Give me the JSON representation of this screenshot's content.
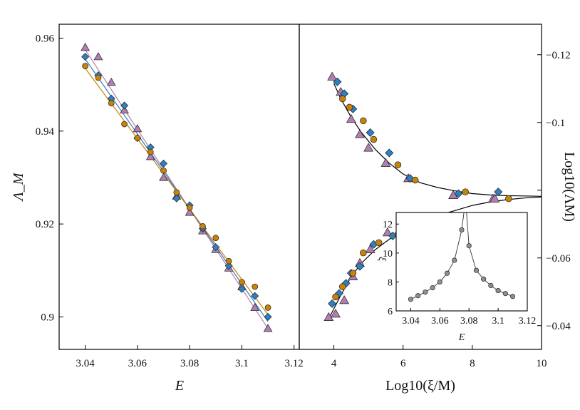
{
  "colors": {
    "triangle": "#b07fb0",
    "diamond": "#2f80c0",
    "circle": "#c8820a",
    "inset_marker": "#909090",
    "fit_curve": "#000000"
  },
  "chart_data": [
    {
      "type": "scatter",
      "panel": "left",
      "xlabel": "E",
      "ylabel": "Λ_M",
      "xlim": [
        3.03,
        3.122
      ],
      "ylim": [
        0.893,
        0.963
      ],
      "x_ticks": [
        3.04,
        3.06,
        3.08,
        3.1,
        3.12
      ],
      "x_tick_labels": [
        "3.04",
        "3.06",
        "3.08",
        "3.1",
        "3.12"
      ],
      "y_ticks": [
        0.9,
        0.92,
        0.94,
        0.96
      ],
      "y_tick_labels": [
        "0.9",
        "0.92",
        "0.94",
        "0.96"
      ],
      "series": [
        {
          "marker": "triangle",
          "x": [
            3.04,
            3.045,
            3.05,
            3.055,
            3.06,
            3.065,
            3.07,
            3.075,
            3.08,
            3.085,
            3.09,
            3.095,
            3.1,
            3.105,
            3.11
          ],
          "y": [
            0.958,
            0.956,
            0.9505,
            0.9445,
            0.9405,
            0.9345,
            0.93,
            0.926,
            0.9225,
            0.9185,
            0.9145,
            0.9105,
            0.9065,
            0.902,
            0.8975
          ],
          "fit": [
            [
              3.04,
              0.9575
            ],
            [
              3.11,
              0.8975
            ]
          ]
        },
        {
          "marker": "diamond",
          "x": [
            3.04,
            3.045,
            3.05,
            3.055,
            3.06,
            3.065,
            3.07,
            3.075,
            3.08,
            3.085,
            3.09,
            3.095,
            3.1,
            3.105,
            3.11
          ],
          "y": [
            0.956,
            0.952,
            0.947,
            0.9455,
            0.9385,
            0.9365,
            0.933,
            0.9255,
            0.924,
            0.919,
            0.915,
            0.911,
            0.906,
            0.9045,
            0.9
          ],
          "fit": [
            [
              3.04,
              0.9555
            ],
            [
              3.11,
              0.899
            ]
          ]
        },
        {
          "marker": "circle",
          "x": [
            3.04,
            3.045,
            3.05,
            3.055,
            3.06,
            3.065,
            3.07,
            3.075,
            3.08,
            3.085,
            3.09,
            3.095,
            3.1,
            3.105,
            3.11
          ],
          "y": [
            0.954,
            0.9515,
            0.946,
            0.9415,
            0.9385,
            0.9355,
            0.9315,
            0.9268,
            0.9235,
            0.9195,
            0.917,
            0.912,
            0.9075,
            0.9065,
            0.902
          ],
          "fit": [
            [
              3.04,
              0.9535
            ],
            [
              3.11,
              0.9005
            ]
          ]
        }
      ]
    },
    {
      "type": "scatter",
      "panel": "right",
      "xlabel": "Log10(ξ/M)",
      "ylabel": "Log10(ΛM)",
      "xlim": [
        3,
        10
      ],
      "ylim": [
        -0.129,
        -0.033
      ],
      "x_ticks": [
        4,
        6,
        8,
        10
      ],
      "x_tick_labels": [
        "4",
        "6",
        "8",
        "10"
      ],
      "y_ticks": [
        -0.04,
        -0.06,
        -0.08,
        -0.1,
        -0.12
      ],
      "y_tick_labels": [
        "−0.04",
        "−0.06",
        "",
        "−0.1",
        "−0.12"
      ],
      "series": [
        {
          "marker": "triangle",
          "x": [
            3.85,
            4.05,
            4.3,
            4.55,
            4.75,
            5.05,
            5.55,
            7.45,
            8.6,
            3.95,
            4.2,
            4.5,
            4.75,
            5.0,
            5.5,
            6.15,
            7.45,
            8.65
          ],
          "y": [
            -0.0425,
            -0.0435,
            -0.0475,
            -0.0545,
            -0.0585,
            -0.0625,
            -0.0675,
            -0.0785,
            -0.0775,
            -0.1135,
            -0.109,
            -0.101,
            -0.0965,
            -0.0925,
            -0.088,
            -0.0835,
            -0.0785,
            -0.0775
          ]
        },
        {
          "marker": "diamond",
          "x": [
            3.95,
            4.15,
            4.35,
            4.5,
            4.75,
            5.15,
            5.7,
            6.55,
            8.75,
            4.1,
            4.3,
            4.55,
            5.05,
            5.6,
            6.2,
            7.6
          ],
          "y": [
            -0.0465,
            -0.0495,
            -0.0525,
            -0.0555,
            -0.0575,
            -0.064,
            -0.0665,
            -0.071,
            -0.0795,
            -0.112,
            -0.1085,
            -0.104,
            -0.097,
            -0.091,
            -0.0835,
            -0.079
          ]
        },
        {
          "marker": "circle",
          "x": [
            4.05,
            4.25,
            4.55,
            4.85,
            5.3,
            5.85,
            6.65,
            9.05,
            4.25,
            4.45,
            4.85,
            5.15,
            5.85,
            6.35,
            7.8
          ],
          "y": [
            -0.0485,
            -0.0515,
            -0.0555,
            -0.0615,
            -0.0645,
            -0.067,
            -0.0725,
            -0.0775,
            -0.107,
            -0.1045,
            -0.1005,
            -0.095,
            -0.0875,
            -0.083,
            -0.0795
          ]
        }
      ],
      "fit_curves": [
        {
          "x": [
            3.85,
            4.0,
            4.2,
            4.5,
            4.8,
            5.2,
            5.6,
            6.0,
            6.5,
            7.0,
            7.5,
            8.0,
            8.5,
            9.0,
            9.5,
            10.0
          ],
          "y": [
            -0.042,
            -0.045,
            -0.049,
            -0.0545,
            -0.0585,
            -0.0625,
            -0.0655,
            -0.068,
            -0.0705,
            -0.0725,
            -0.074,
            -0.0755,
            -0.0765,
            -0.0772,
            -0.0777,
            -0.078
          ]
        },
        {
          "x": [
            4.0,
            4.2,
            4.5,
            4.8,
            5.2,
            5.6,
            6.0,
            6.5,
            7.0,
            7.5,
            8.0,
            8.5,
            9.0,
            9.5,
            10.0
          ],
          "y": [
            -0.1115,
            -0.107,
            -0.1015,
            -0.097,
            -0.092,
            -0.088,
            -0.0848,
            -0.0822,
            -0.0808,
            -0.0798,
            -0.079,
            -0.0786,
            -0.0784,
            -0.0783,
            -0.0782
          ]
        }
      ]
    },
    {
      "type": "scatter",
      "panel": "inset",
      "xlabel": "E",
      "ylabel": "ξ",
      "xlim": [
        3.03,
        3.12
      ],
      "ylim": [
        6,
        12.8
      ],
      "x_ticks": [
        3.04,
        3.06,
        3.08,
        3.1,
        3.12
      ],
      "x_tick_labels": [
        "3.04",
        "3.06",
        "3.08",
        "3.1",
        "3.12"
      ],
      "y_ticks": [
        6,
        8,
        10,
        12
      ],
      "y_tick_labels": [
        "6",
        "8",
        "10",
        "12"
      ],
      "series": [
        {
          "marker": "circle",
          "x": [
            3.04,
            3.045,
            3.05,
            3.055,
            3.06,
            3.065,
            3.07,
            3.075,
            3.08,
            3.085,
            3.09,
            3.095,
            3.1,
            3.105,
            3.11
          ],
          "y": [
            6.8,
            7.05,
            7.3,
            7.6,
            8.0,
            8.6,
            9.5,
            11.6,
            10.5,
            8.8,
            8.2,
            7.75,
            7.4,
            7.2,
            7.0
          ]
        }
      ],
      "critical_x": 3.0775
    }
  ]
}
